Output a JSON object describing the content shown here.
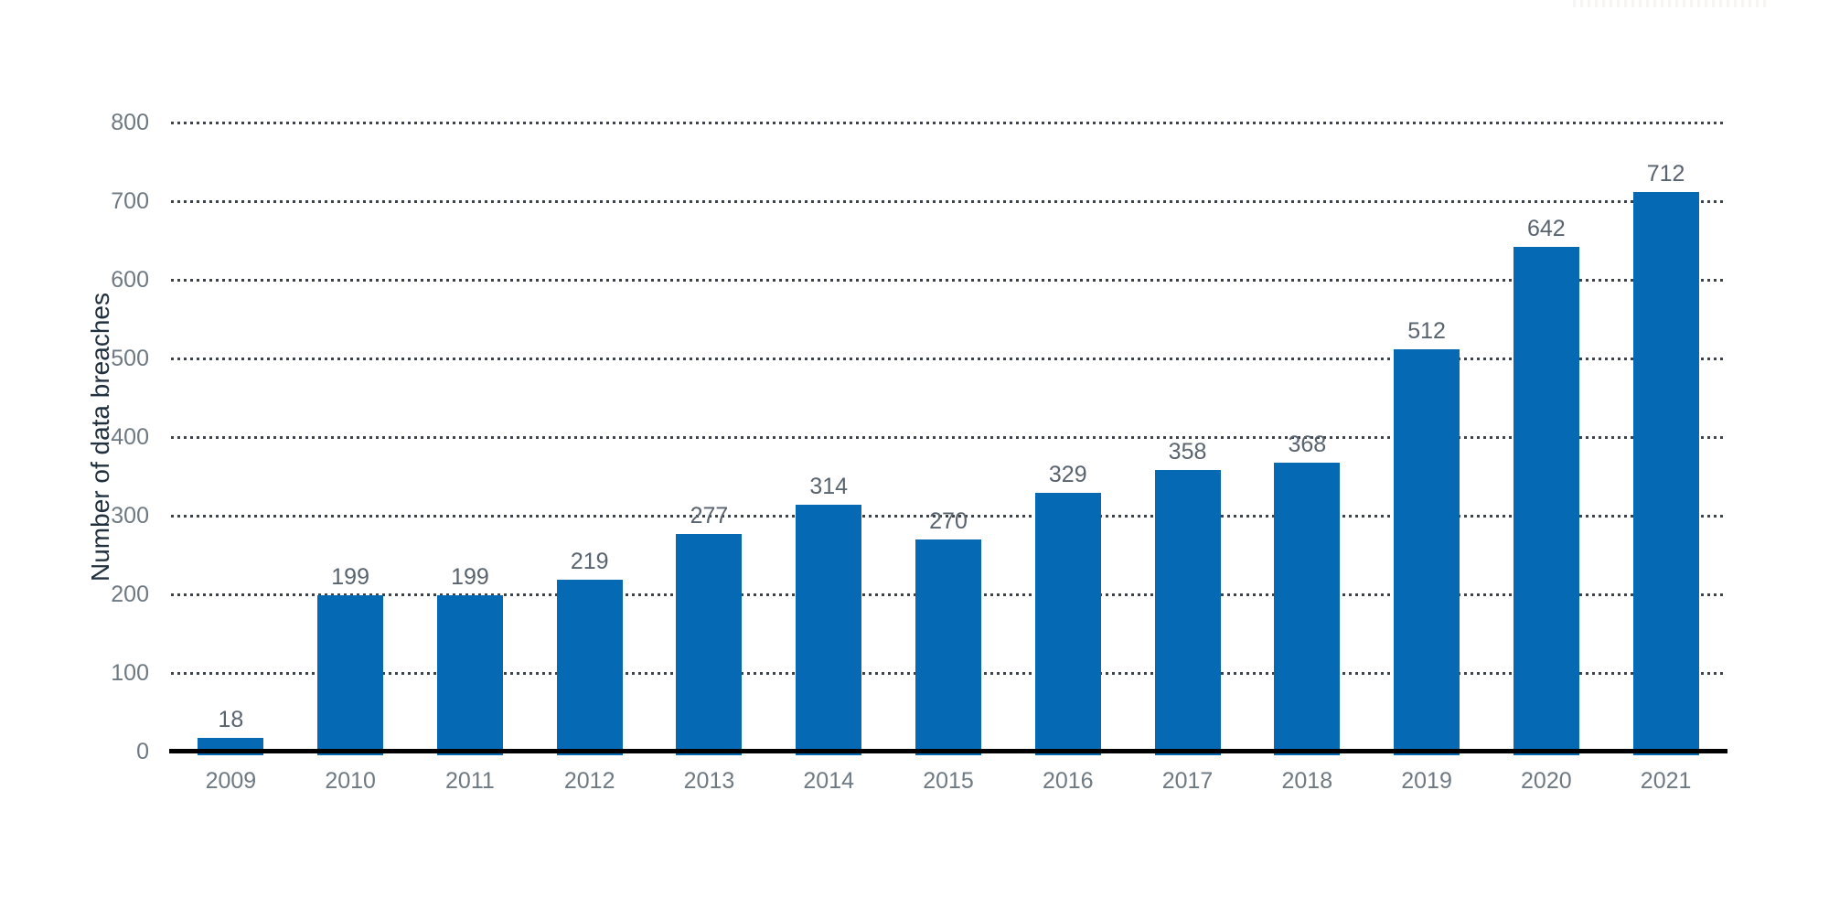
{
  "chart_data": {
    "type": "bar",
    "title": "",
    "xlabel": "",
    "ylabel": "Number of data breaches",
    "categories": [
      "2009",
      "2010",
      "2011",
      "2012",
      "2013",
      "2014",
      "2015",
      "2016",
      "2017",
      "2018",
      "2019",
      "2020",
      "2021"
    ],
    "values": [
      18,
      199,
      199,
      219,
      277,
      314,
      270,
      329,
      358,
      368,
      512,
      642,
      712
    ],
    "value_labels": [
      "18",
      "199",
      "199",
      "219",
      "277",
      "314",
      "270",
      "329",
      "358",
      "368",
      "512",
      "642",
      "712"
    ],
    "ylim": [
      0,
      800
    ],
    "ytick_interval": 100,
    "ytick_labels": [
      "0",
      "100",
      "200",
      "300",
      "400",
      "500",
      "600",
      "700",
      "800"
    ],
    "grid": "horizontal-dotted",
    "legend_position": "none",
    "colors": {
      "bar": "#0669b4",
      "gridline_dot": "#3d434a",
      "axis_line": "#000000",
      "tick_label": "#6e7982",
      "value_label": "#59636e",
      "axis_title": "#21303f",
      "background": "#ffffff"
    }
  },
  "artifacts": {
    "top_right_remnant": "faint unreadable strip of a cropped-off element at top edge"
  }
}
